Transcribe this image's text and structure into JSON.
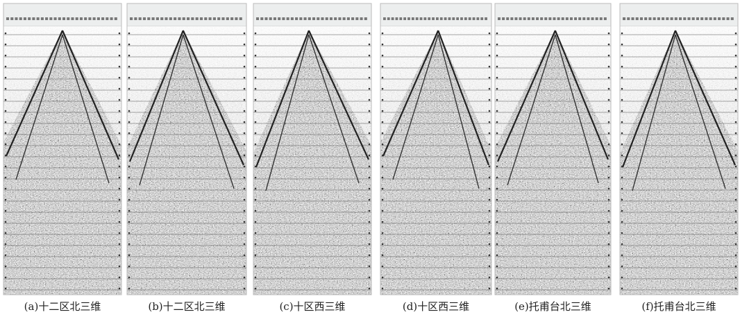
{
  "panels": [
    {
      "caption": "(a)十二区北三维"
    },
    {
      "caption": "(b)十二区北三维"
    },
    {
      "caption": "(c)十区西三维"
    },
    {
      "caption": "(d)十区西三维"
    },
    {
      "caption": "(e)托甫台北三维"
    },
    {
      "caption": "(f)托甫台北三维"
    }
  ]
}
